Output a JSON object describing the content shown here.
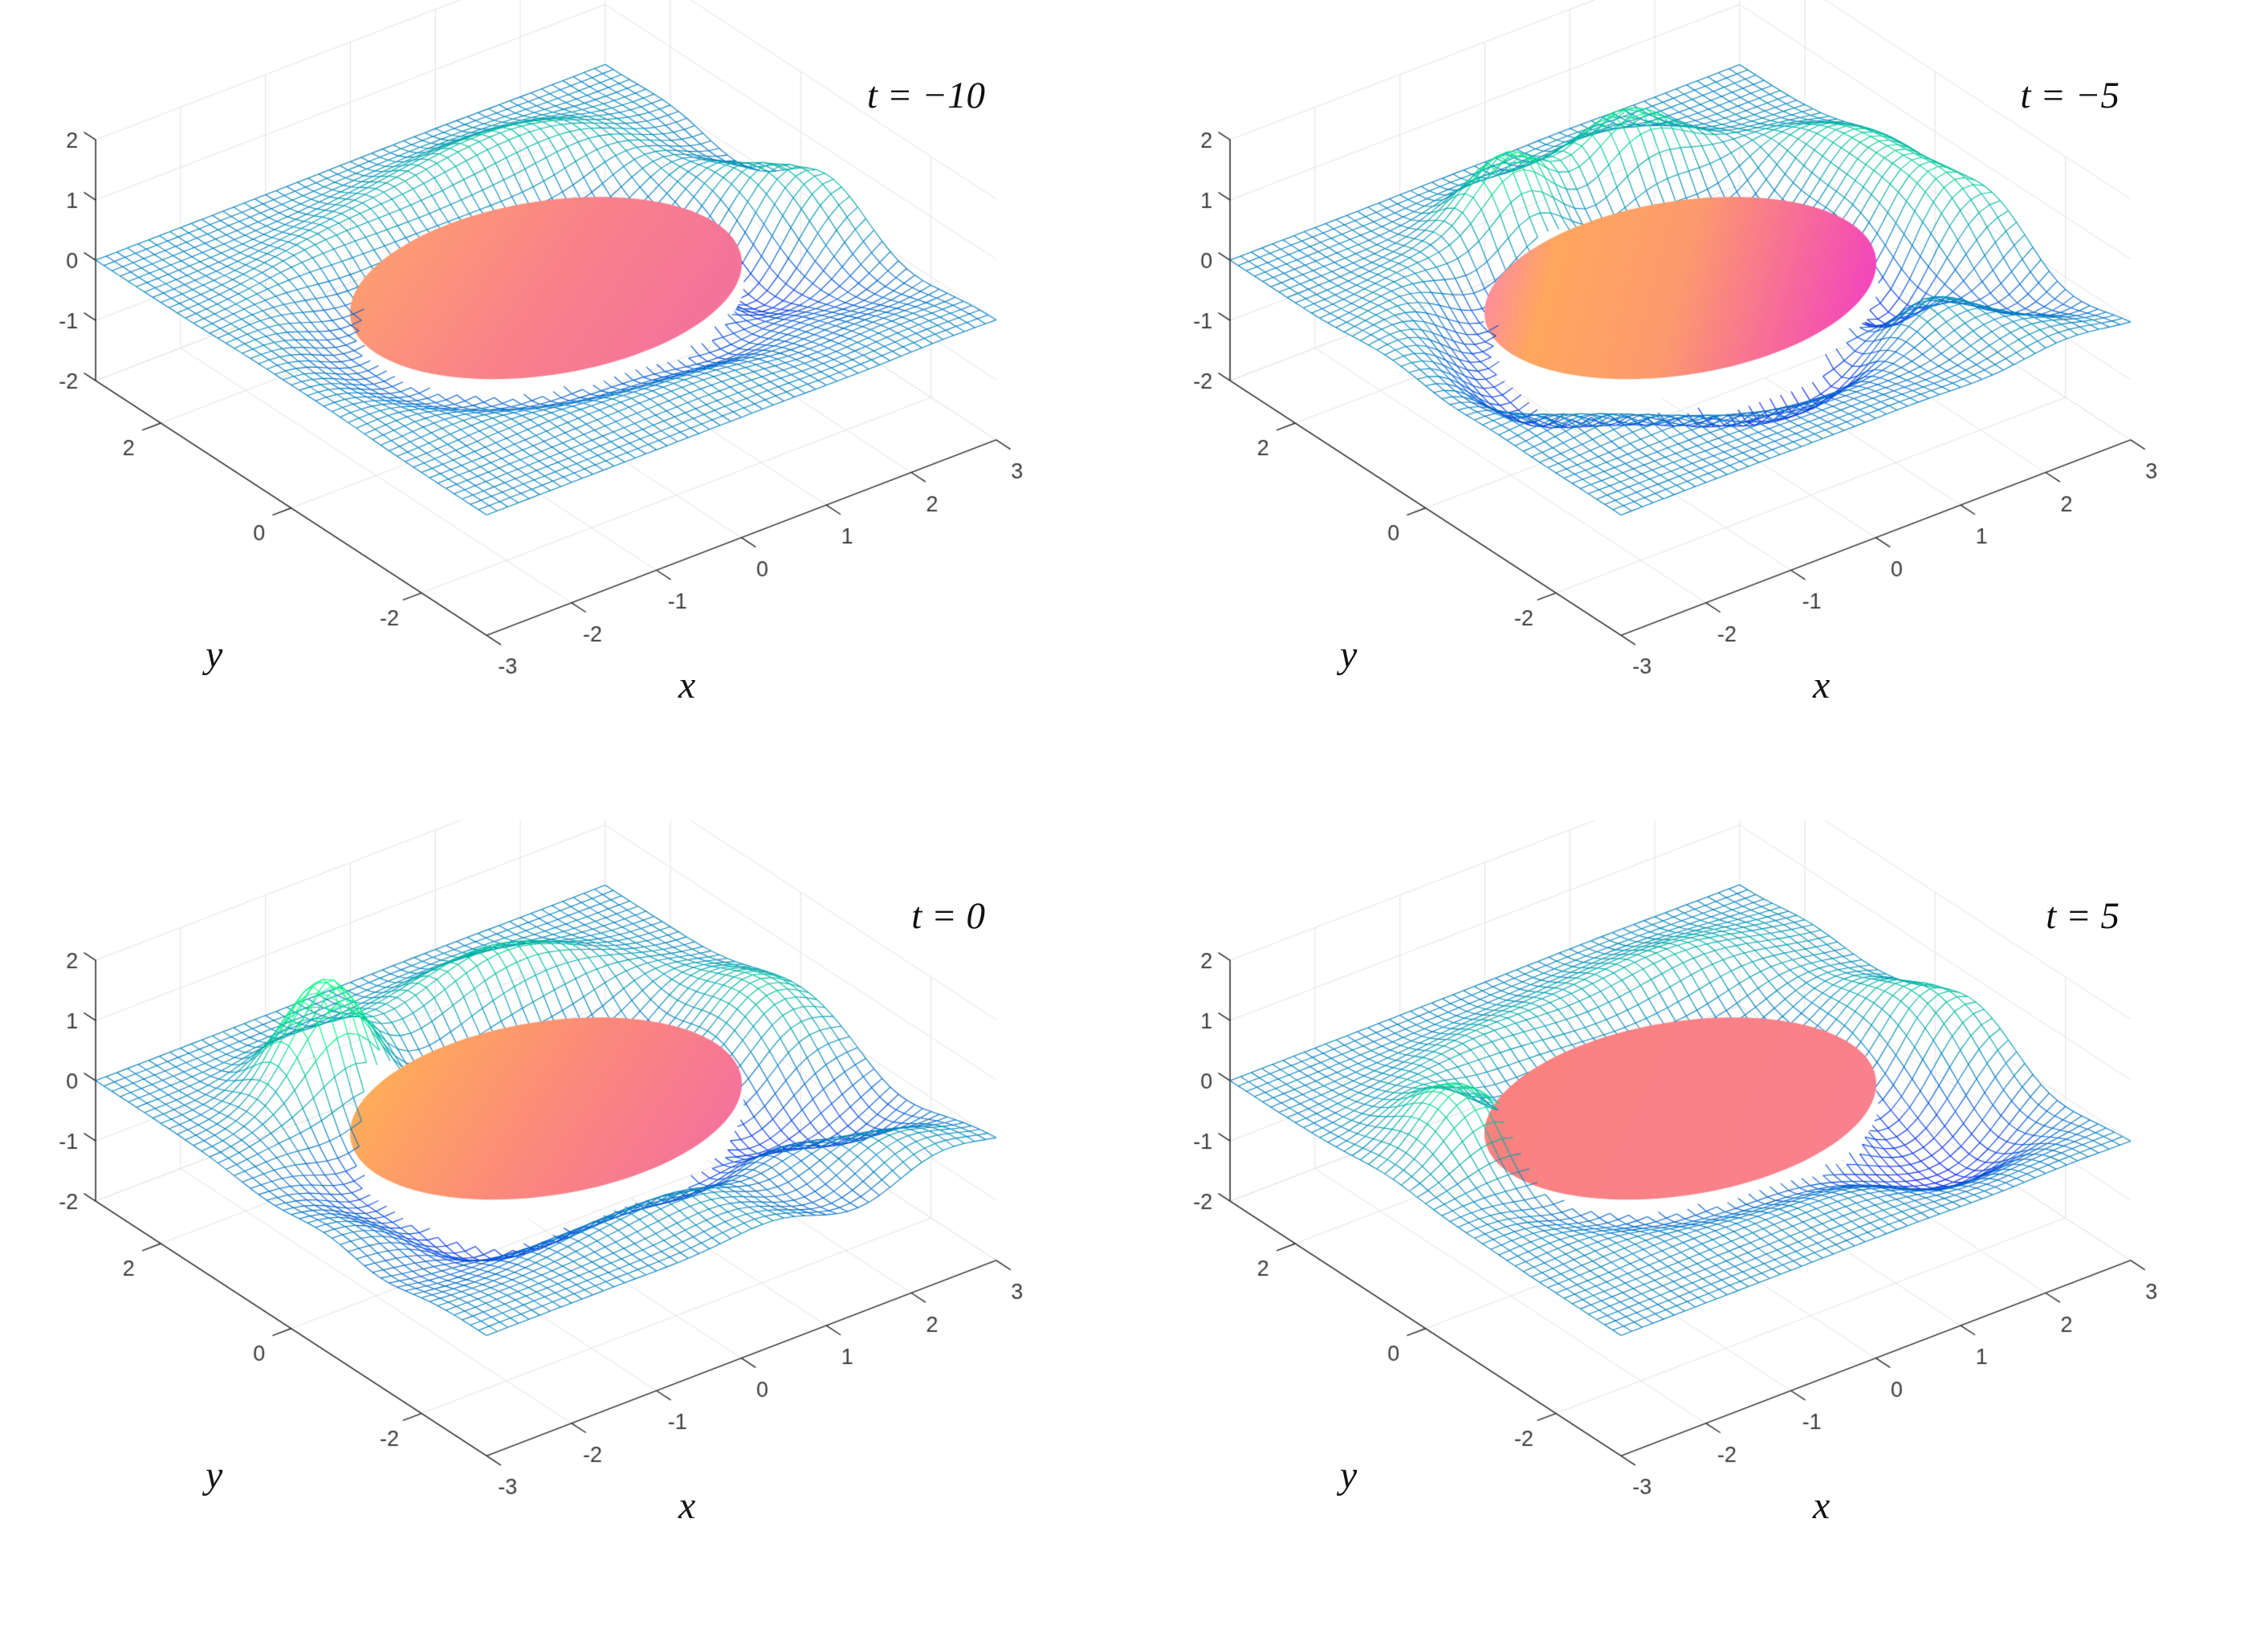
{
  "figure": {
    "background": "#ffffff",
    "description": "2x2 grid of 3D mesh surface snapshots of a wave field at four times, each with a colored elliptical disk at z=0"
  },
  "chart_data": {
    "type": "surface",
    "layout": "2x2",
    "view": {
      "azimuth": -37.5,
      "elevation": 30
    },
    "axes": {
      "xlabel": "x",
      "ylabel": "y",
      "xlim": [
        -3,
        3
      ],
      "ylim": [
        -3,
        3
      ],
      "zlim": [
        -2,
        2
      ],
      "xticks": [
        -3,
        -2,
        -1,
        0,
        1,
        2,
        3
      ],
      "yticks": [
        -2,
        0,
        2
      ],
      "zticks": [
        -2,
        -1,
        0,
        1,
        2
      ],
      "xtick_labels": [
        "-3",
        "-2",
        "-1",
        "0",
        "1",
        "2",
        "3"
      ],
      "ytick_labels": [
        "-2",
        "0",
        "2"
      ],
      "ztick_labels": [
        "-2",
        "-1",
        "0",
        "1",
        "2"
      ],
      "grid": true
    },
    "colors": {
      "grid": "#e2e2e2",
      "axis": "#262626",
      "tick_text": "#3b3b3b",
      "mesh_low": "#0000ff",
      "mesh_high": "#00ff80",
      "disk_rim": "#ffffff"
    },
    "mesh": {
      "step": 0.125,
      "zclamp": [
        -1.95,
        1.95
      ],
      "cmap_zmin": -1.3,
      "cmap_zmax": 1.3
    },
    "ellipse": {
      "a": 2.0,
      "b": 1.5,
      "cx": 0,
      "cy": 0,
      "top_z": 0.03,
      "under_z": -0.3
    },
    "panels": [
      {
        "title": "t = −10",
        "disk": {
          "x1": 0.1,
          "y1": 0.0,
          "x2": 0.8,
          "y2": 1.0,
          "stops": [
            [
              0,
              "#ffa06e"
            ],
            [
              0.55,
              "#f9828a"
            ],
            [
              1,
              "#f4739a"
            ]
          ]
        },
        "bumps": [
          {
            "x": 0.8,
            "y": 1.9,
            "a": 0.65,
            "sx": 1.0,
            "sy": 0.42
          },
          {
            "x": -0.9,
            "y": 1.6,
            "a": 0.3,
            "sx": 0.7,
            "sy": 0.35
          },
          {
            "x": 1.6,
            "y": -1.6,
            "a": -0.45,
            "sx": 0.7,
            "sy": 0.5
          }
        ],
        "ring": {
          "a": -0.35,
          "k": 4.2,
          "ph": 0,
          "s": 0.42
        },
        "ripples": [
          {
            "a": 0.6,
            "kx": 2.7,
            "ky": 1.7,
            "ph": 0.6,
            "x": 2.6,
            "y": -0.2,
            "s": 1.0
          }
        ]
      },
      {
        "title": "t = −5",
        "disk": {
          "x1": 0.0,
          "y1": 0.2,
          "x2": 1.0,
          "y2": 0.75,
          "stops": [
            [
              0,
              "#fd86b0"
            ],
            [
              0.18,
              "#ffa75f"
            ],
            [
              0.5,
              "#fc9a6e"
            ],
            [
              1,
              "#f23fc3"
            ]
          ]
        },
        "bumps": [
          {
            "x": -0.55,
            "y": 1.75,
            "a": 1.3,
            "sx": 0.42,
            "sy": 0.4
          },
          {
            "x": 0.85,
            "y": 1.85,
            "a": 1.05,
            "sx": 0.5,
            "sy": 0.42
          },
          {
            "x": 2.45,
            "y": 0.4,
            "a": 0.75,
            "sx": 0.5,
            "sy": 0.75
          },
          {
            "x": 0.1,
            "y": -1.85,
            "a": -0.5,
            "sx": 1.0,
            "sy": 0.45
          },
          {
            "x": -2.3,
            "y": -0.4,
            "a": -0.3,
            "sx": 0.6,
            "sy": 0.5
          }
        ],
        "ring": {
          "a": -0.6,
          "k": 5.0,
          "ph": 0,
          "s": 0.45
        },
        "ripples": [
          {
            "a": 0.55,
            "kx": 2.7,
            "ky": 1.9,
            "ph": 1.3,
            "x": 2.4,
            "y": -1.2,
            "s": 0.95
          }
        ]
      },
      {
        "title": "t = 0",
        "disk": {
          "x1": 0.1,
          "y1": 0.0,
          "x2": 0.85,
          "y2": 1.0,
          "stops": [
            [
              0,
              "#ffb155"
            ],
            [
              0.5,
              "#fc8c78"
            ],
            [
              1,
              "#f5729c"
            ]
          ]
        },
        "bumps": [
          {
            "x": -1.35,
            "y": 1.5,
            "a": 1.85,
            "sx": 0.45,
            "sy": 0.4
          },
          {
            "x": 0.8,
            "y": 1.85,
            "a": 0.75,
            "sx": 0.8,
            "sy": 0.42
          },
          {
            "x": 2.3,
            "y": 0.0,
            "a": 0.8,
            "sx": 0.5,
            "sy": 0.6
          },
          {
            "x": 2.0,
            "y": -1.4,
            "a": -0.95,
            "sx": 0.6,
            "sy": 0.5
          },
          {
            "x": -1.9,
            "y": -1.3,
            "a": -0.55,
            "sx": 0.8,
            "sy": 0.5
          },
          {
            "x": -2.7,
            "y": 0.3,
            "a": -0.3,
            "sx": 0.5,
            "sy": 0.6
          }
        ],
        "ring": {
          "a": -0.5,
          "k": 4.5,
          "ph": 0.3,
          "s": 0.45
        },
        "ripples": [
          {
            "a": 0.35,
            "kx": 2.5,
            "ky": 1.6,
            "ph": 0,
            "x": 1.6,
            "y": -2.2,
            "s": 1.0
          }
        ]
      },
      {
        "title": "t = 5",
        "disk": {
          "x1": 0.0,
          "y1": 0.0,
          "x2": 1.0,
          "y2": 1.0,
          "stops": [
            [
              0,
              "#f9837e"
            ],
            [
              1,
              "#f9808f"
            ]
          ]
        },
        "bumps": [
          {
            "x": -2.05,
            "y": 0.6,
            "a": 1.3,
            "sx": 0.42,
            "sy": 0.5
          },
          {
            "x": -0.8,
            "y": 1.7,
            "a": 0.45,
            "sx": 0.8,
            "sy": 0.4
          },
          {
            "x": 1.3,
            "y": 1.9,
            "a": 0.5,
            "sx": 1.0,
            "sy": 0.45
          },
          {
            "x": 1.7,
            "y": -1.7,
            "a": -1.05,
            "sx": 0.6,
            "sy": 0.5
          },
          {
            "x": 2.7,
            "y": 0.2,
            "a": 0.3,
            "sx": 0.5,
            "sy": 0.8
          }
        ],
        "ring": {
          "a": -0.3,
          "k": 4.0,
          "ph": 0,
          "s": 0.4
        },
        "ripples": [
          {
            "a": 0.5,
            "kx": 2.7,
            "ky": 1.6,
            "ph": 0.9,
            "x": 2.6,
            "y": -0.6,
            "s": 0.95
          }
        ]
      }
    ]
  }
}
